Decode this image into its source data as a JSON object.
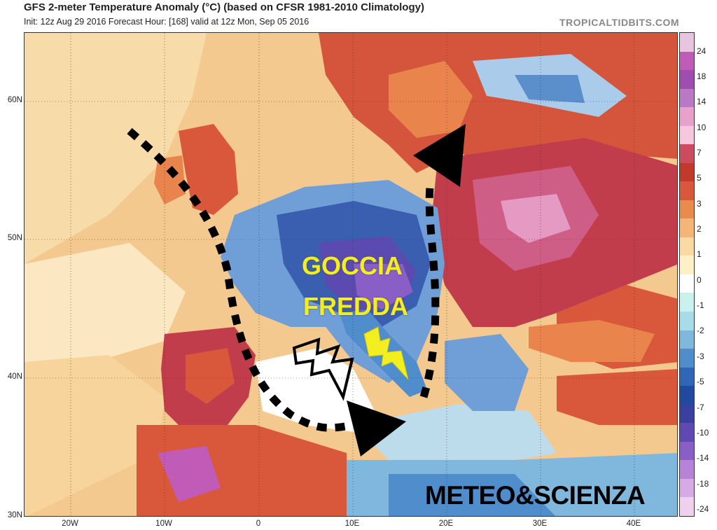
{
  "header": {
    "title": "GFS 2-meter Temperature Anomaly (°C) (based on CFSR 1981-2010 Climatology)",
    "subtitle": "Init: 12z Aug 29 2016   Forecast Hour: [168]   valid at 12z Mon, Sep 05 2016",
    "brand": "TROPICALTIDBITS.COM"
  },
  "axes": {
    "lat_labels": [
      "60N",
      "50N",
      "40N",
      "30N"
    ],
    "lon_labels": [
      "20W",
      "10W",
      "0",
      "10E",
      "20E",
      "30E",
      "40E"
    ]
  },
  "colorbar": {
    "labels": [
      "24",
      "18",
      "14",
      "10",
      "7",
      "5",
      "3",
      "2",
      "1",
      "0",
      "-1",
      "-2",
      "-3",
      "-5",
      "-7",
      "-10",
      "-14",
      "-18",
      "-24"
    ],
    "colors": [
      "#e8c5de",
      "#c05cb8",
      "#9f4db0",
      "#ba79c4",
      "#e7a1cb",
      "#f6c7dd",
      "#cc4b5f",
      "#c0392b",
      "#d9573b",
      "#ea8b4e",
      "#f5b578",
      "#fbd9a3",
      "#fdf0c6",
      "#ffffff",
      "#c9f2ee",
      "#a9dce9",
      "#7fb7dd",
      "#4f8dcc",
      "#2f66b8",
      "#2149a0",
      "#3b3fa0",
      "#6149b3",
      "#8a5ec7",
      "#b683d8",
      "#d7a9e5",
      "#efd0ef"
    ]
  },
  "annotations": {
    "cold_pool_line1": "GOCCIA",
    "cold_pool_line2": "FREDDA",
    "credit": "METEO&SCIENZA"
  }
}
